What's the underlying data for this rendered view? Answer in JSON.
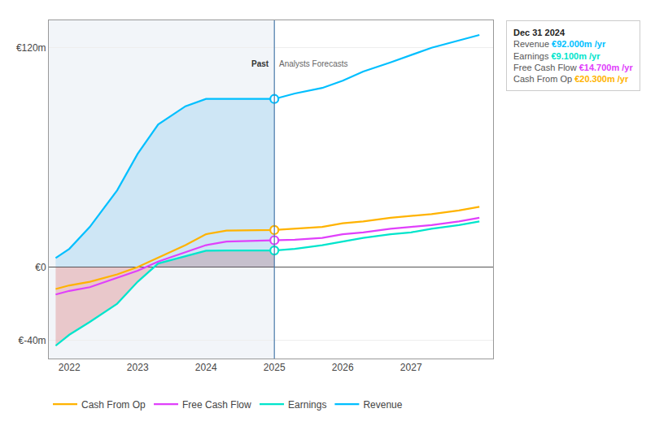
{
  "chart_data": {
    "type": "line",
    "x": [
      2021.8,
      2022,
      2022.3,
      2022.7,
      2023,
      2023.3,
      2023.7,
      2024,
      2024.3,
      2025,
      2025.3,
      2025.7,
      2026,
      2026.3,
      2026.7,
      2027,
      2027.3,
      2027.7,
      2028
    ],
    "series": [
      {
        "name": "Revenue",
        "color": "#00bfff",
        "values": [
          5,
          10,
          22,
          42,
          62,
          78,
          88,
          92,
          92,
          92,
          95,
          98,
          102,
          107,
          112,
          116,
          120,
          124,
          127
        ]
      },
      {
        "name": "Earnings",
        "color": "#00e5cc",
        "values": [
          -43,
          -37,
          -30,
          -20,
          -8,
          2,
          6,
          9,
          9.1,
          9.1,
          10,
          12,
          14,
          16,
          18,
          19,
          21,
          23,
          25
        ]
      },
      {
        "name": "Free Cash Flow",
        "color": "#e040fb",
        "values": [
          -15,
          -13,
          -11,
          -6,
          -2,
          3,
          8,
          12,
          14,
          14.7,
          15,
          16,
          18,
          19,
          21,
          22,
          23,
          25,
          27
        ]
      },
      {
        "name": "Cash From Op",
        "color": "#ffb300",
        "values": [
          -12,
          -10,
          -8,
          -4,
          0,
          5,
          12,
          18,
          20,
          20.3,
          21,
          22,
          24,
          25,
          27,
          28,
          29,
          31,
          33
        ]
      }
    ],
    "xlim": [
      2021.7,
      2028.2
    ],
    "xticks": [
      2022,
      2023,
      2024,
      2025,
      2026,
      2027
    ],
    "ylim": [
      -50,
      135
    ],
    "yticks": [
      {
        "value": -40,
        "label": "€-40m"
      },
      {
        "value": 0,
        "label": "€0"
      },
      {
        "value": 120,
        "label": "€120m"
      }
    ],
    "grid": true,
    "legend": "bottom",
    "annotations": [
      {
        "text": "Past",
        "x": 2025,
        "y": 108
      },
      {
        "text": "Analysts Forecasts",
        "x": 2025,
        "y": 108
      },
      {
        "text": "Dec 31 2024",
        "rows": [
          {
            "label": "Revenue",
            "value": "€92.000m /yr",
            "color": "#00bfff"
          },
          {
            "label": "Earnings",
            "value": "€9.100m /yr",
            "color": "#00e5cc"
          },
          {
            "label": "Free Cash Flow",
            "value": "€14.700m /yr",
            "color": "#e040fb"
          },
          {
            "label": "Cash From Op",
            "value": "€20.300m /yr",
            "color": "#ffb300"
          }
        ]
      }
    ]
  }
}
